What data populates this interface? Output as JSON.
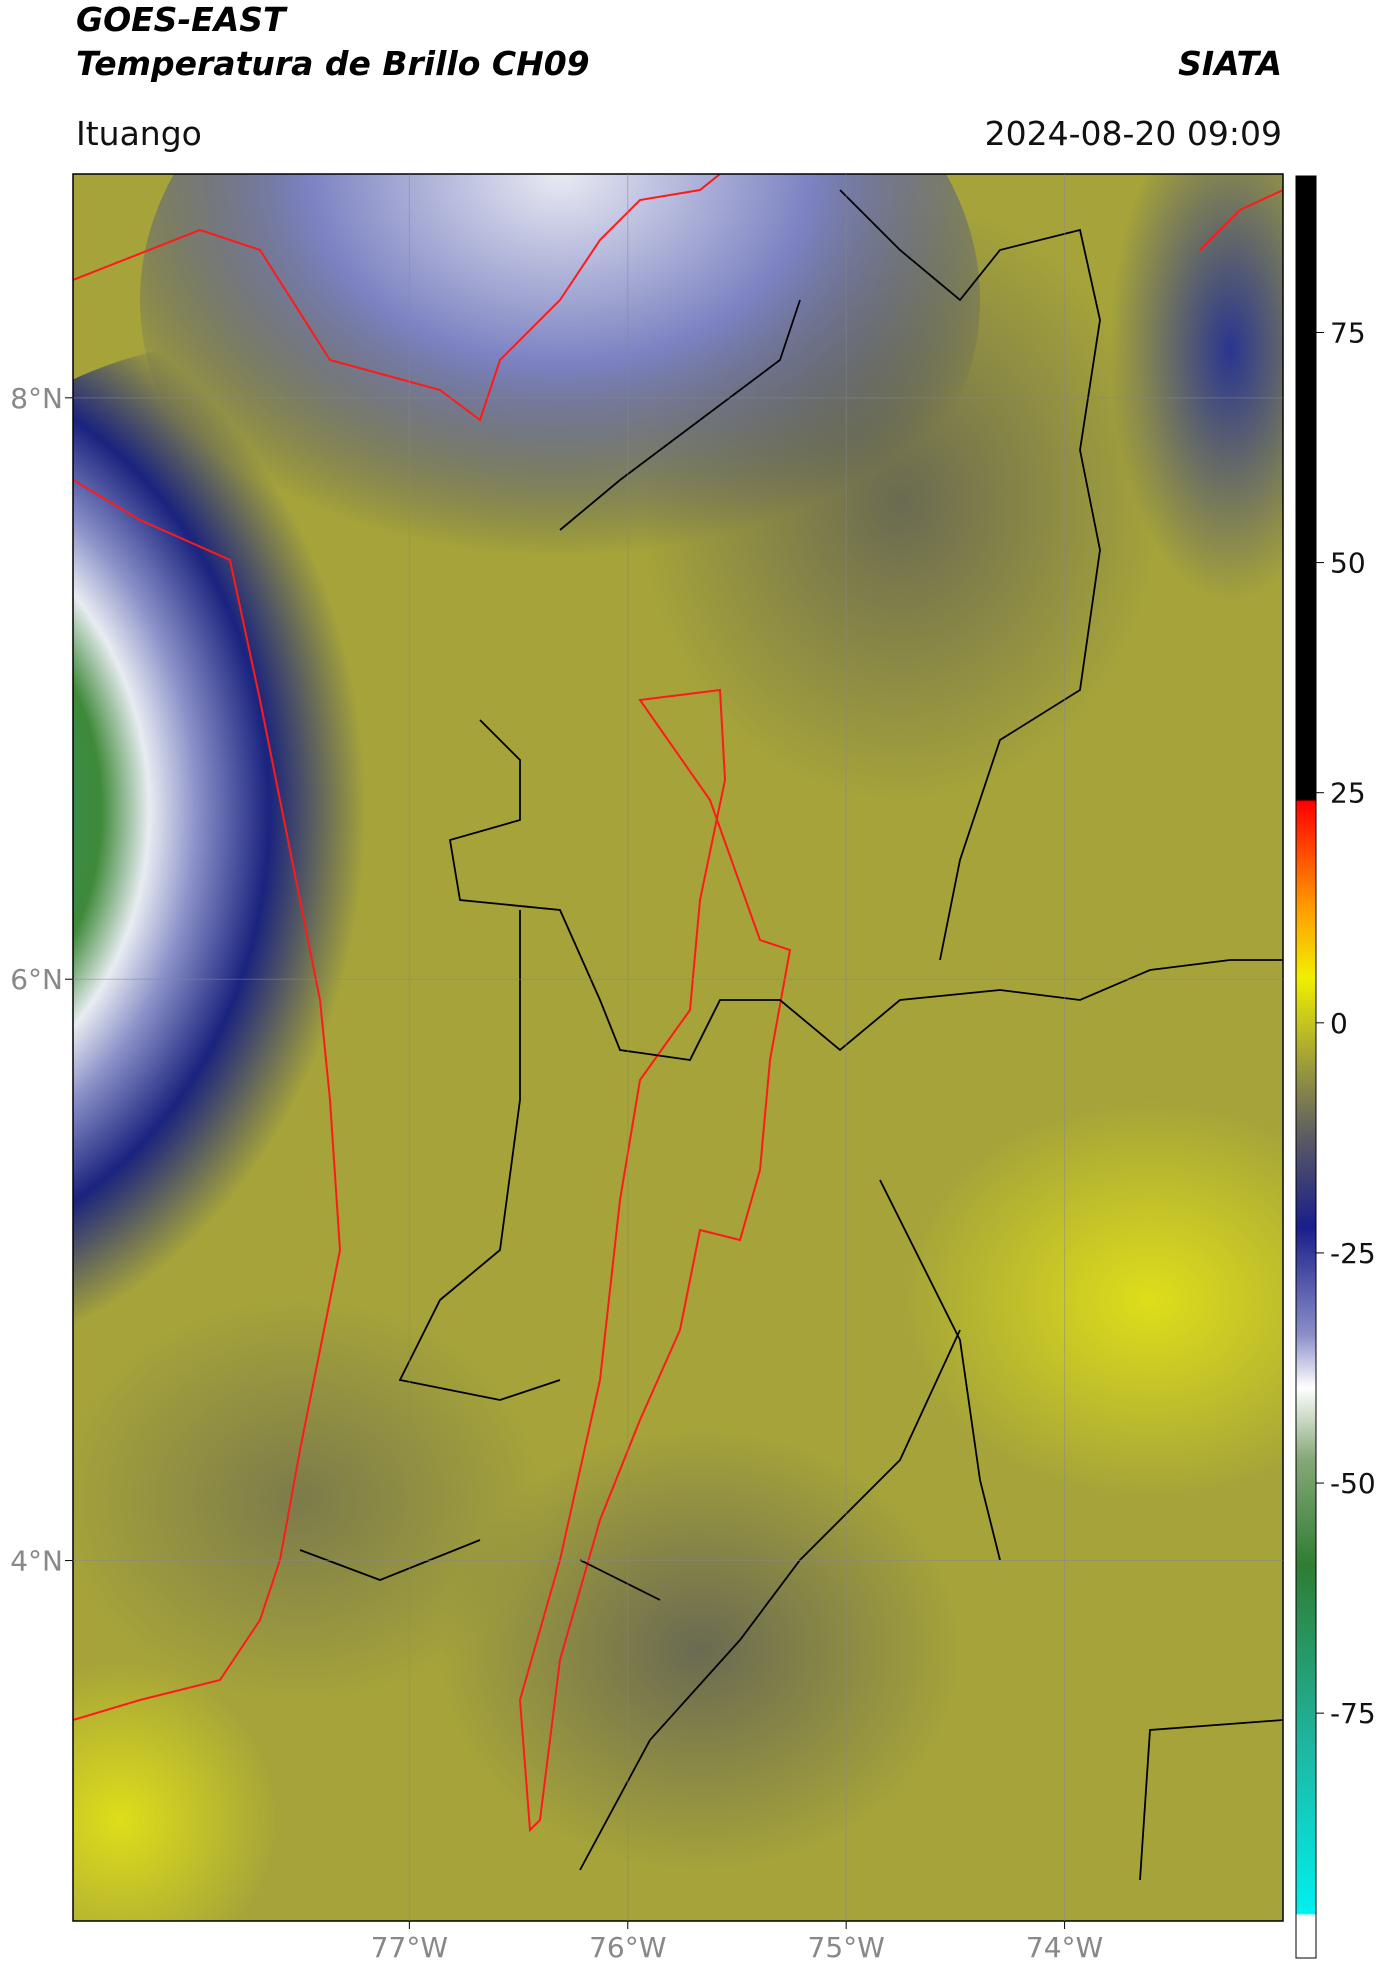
{
  "header": {
    "title_line1": "GOES-EAST",
    "title_line2": "Temperatura de Brillo CH09",
    "source": "SIATA",
    "location": "Ituango",
    "timestamp": "2024-08-20 09:09"
  },
  "map": {
    "xlim": [
      -78.54,
      -73.0
    ],
    "ylim": [
      2.76,
      8.77
    ],
    "xticks": [
      {
        "value": -77,
        "label": "77°W"
      },
      {
        "value": -76,
        "label": "76°W"
      },
      {
        "value": -75,
        "label": "75°W"
      },
      {
        "value": -74,
        "label": "74°W"
      }
    ],
    "yticks": [
      {
        "value": 8,
        "label": "8°N"
      },
      {
        "value": 6,
        "label": "6°N"
      },
      {
        "value": 4,
        "label": "4°N"
      }
    ],
    "grid": true
  },
  "colorbar": {
    "lim": [
      -101.6,
      92
    ],
    "ticks": [
      75,
      50,
      25,
      0,
      -25,
      -50,
      -75
    ]
  }
}
